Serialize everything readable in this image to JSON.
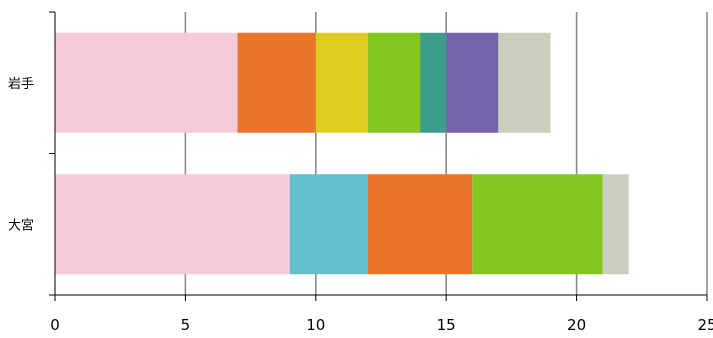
{
  "chart_data": {
    "type": "bar",
    "orientation": "horizontal",
    "stacked": true,
    "categories": [
      "岩手",
      "大宮"
    ],
    "xlim": [
      0,
      25
    ],
    "x_ticks": [
      "0",
      "5",
      "10",
      "15",
      "20",
      "25"
    ],
    "grid": true,
    "legend": "none",
    "title": "",
    "xlabel": "",
    "ylabel": "",
    "colors": {
      "pink": "#f4cbd8",
      "orange": "#eb7428",
      "yellow": "#e0cd22",
      "green": "#83c620",
      "teal": "#3d9d8b",
      "purple": "#7464ab",
      "gray": "#cbcdbd",
      "cyan": "#63bfcc"
    },
    "stacks": [
      {
        "category": "岩手",
        "segments": [
          {
            "value": 7,
            "color": "pink"
          },
          {
            "value": 3,
            "color": "orange"
          },
          {
            "value": 2,
            "color": "yellow"
          },
          {
            "value": 2,
            "color": "green"
          },
          {
            "value": 1,
            "color": "teal"
          },
          {
            "value": 2,
            "color": "purple"
          },
          {
            "value": 2,
            "color": "gray"
          }
        ]
      },
      {
        "category": "大宮",
        "segments": [
          {
            "value": 9,
            "color": "pink"
          },
          {
            "value": 3,
            "color": "cyan"
          },
          {
            "value": 4,
            "color": "orange"
          },
          {
            "value": 5,
            "color": "green"
          },
          {
            "value": 1,
            "color": "gray"
          }
        ]
      }
    ]
  }
}
